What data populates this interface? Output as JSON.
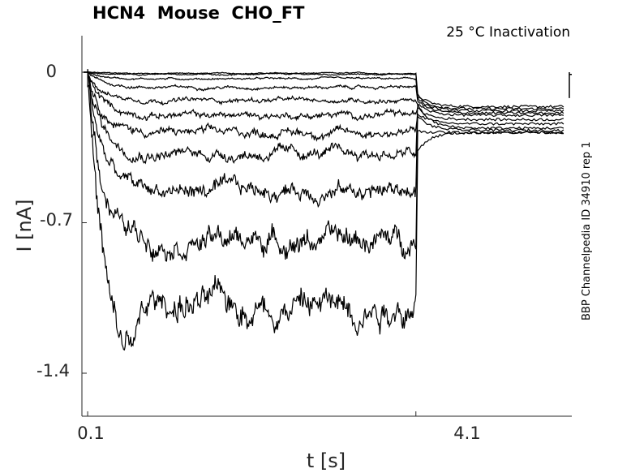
{
  "chart_data": {
    "type": "line",
    "title": "HCN4  Mouse  CHO_FT",
    "subtitle": "25 °C  Inactivation",
    "side_label": "BBP Channelpedia ID 34910 rep 1",
    "xlabel": "t [s]",
    "ylabel": "I [nA]",
    "xticks": [
      "0.1",
      "4.1"
    ],
    "yticks": [
      "0",
      "-0.7",
      "-1.4"
    ],
    "xlim": [
      0.03,
      6.0
    ],
    "ylim": [
      -1.6,
      0.17
    ],
    "grid": false,
    "step_start": 0.1,
    "step_end": 4.1,
    "sweeps": [
      {
        "steady": -0.005,
        "tail": -0.16
      },
      {
        "steady": -0.01,
        "tail": -0.17
      },
      {
        "steady": -0.03,
        "tail": -0.18
      },
      {
        "steady": -0.07,
        "tail": -0.19
      },
      {
        "steady": -0.13,
        "tail": -0.2
      },
      {
        "steady": -0.2,
        "tail": -0.22
      },
      {
        "steady": -0.28,
        "tail": -0.24
      },
      {
        "steady": -0.38,
        "tail": -0.26
      },
      {
        "steady": -0.55,
        "tail": -0.27
      },
      {
        "steady": -0.78,
        "tail": -0.28
      },
      {
        "steady": -1.08,
        "tail": -0.28
      }
    ]
  }
}
